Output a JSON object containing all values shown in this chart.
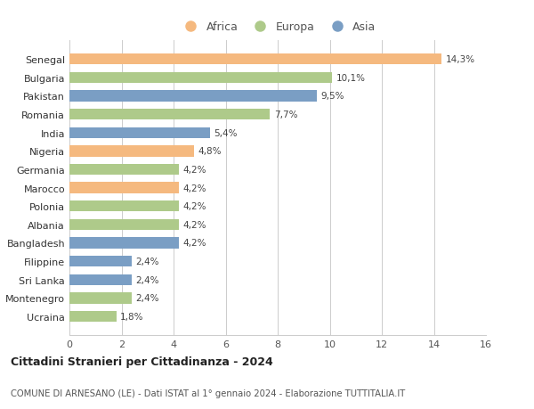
{
  "countries": [
    "Senegal",
    "Bulgaria",
    "Pakistan",
    "Romania",
    "India",
    "Nigeria",
    "Germania",
    "Marocco",
    "Polonia",
    "Albania",
    "Bangladesh",
    "Filippine",
    "Sri Lanka",
    "Montenegro",
    "Ucraina"
  ],
  "values": [
    14.3,
    10.1,
    9.5,
    7.7,
    5.4,
    4.8,
    4.2,
    4.2,
    4.2,
    4.2,
    4.2,
    2.4,
    2.4,
    2.4,
    1.8
  ],
  "labels": [
    "14,3%",
    "10,1%",
    "9,5%",
    "7,7%",
    "5,4%",
    "4,8%",
    "4,2%",
    "4,2%",
    "4,2%",
    "4,2%",
    "4,2%",
    "2,4%",
    "2,4%",
    "2,4%",
    "1,8%"
  ],
  "continents": [
    "Africa",
    "Europa",
    "Asia",
    "Europa",
    "Asia",
    "Africa",
    "Europa",
    "Africa",
    "Europa",
    "Europa",
    "Asia",
    "Asia",
    "Asia",
    "Europa",
    "Europa"
  ],
  "colors": {
    "Africa": "#F5B97F",
    "Europa": "#AECA8A",
    "Asia": "#7A9EC4"
  },
  "xlim": [
    0,
    16
  ],
  "xticks": [
    0,
    2,
    4,
    6,
    8,
    10,
    12,
    14,
    16
  ],
  "title": "Cittadini Stranieri per Cittadinanza - 2024",
  "subtitle": "COMUNE DI ARNESANO (LE) - Dati ISTAT al 1° gennaio 2024 - Elaborazione TUTTITALIA.IT",
  "bg_color": "#ffffff",
  "grid_color": "#cccccc",
  "bar_height": 0.6
}
